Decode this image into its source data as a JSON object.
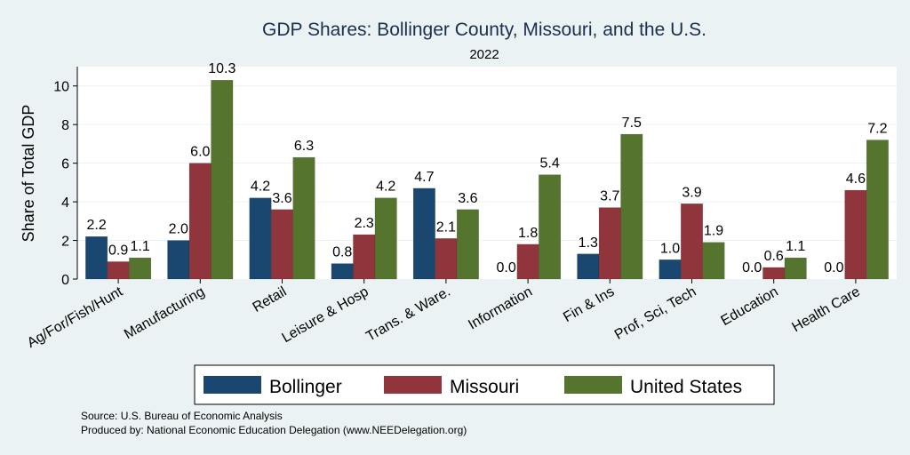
{
  "chart_data": {
    "type": "bar",
    "title": "GDP Shares: Bollinger County, Missouri, and the U.S.",
    "subtitle": "2022",
    "ylabel": "Share of Total GDP",
    "xlabel": "",
    "ylim": [
      0,
      11
    ],
    "yticks": [
      0,
      2,
      4,
      6,
      8,
      10
    ],
    "grid": true,
    "legend_position": "bottom",
    "categories": [
      "Ag/For/Fish/Hunt",
      "Manufacturing",
      "Retail",
      "Leisure & Hosp",
      "Trans. & Ware.",
      "Information",
      "Fin & Ins",
      "Prof, Sci, Tech",
      "Education",
      "Health Care"
    ],
    "series": [
      {
        "name": "Bollinger",
        "color": "#1a476f",
        "values": [
          2.2,
          2.0,
          4.2,
          0.8,
          4.7,
          0.0,
          1.3,
          1.0,
          0.0,
          0.0
        ],
        "labels": [
          "2.2",
          "2.0",
          "4.2",
          "0.8",
          "4.7",
          "0.0",
          "1.3",
          "1.0",
          "0.0",
          "0.0"
        ]
      },
      {
        "name": "Missouri",
        "color": "#90353b",
        "values": [
          0.9,
          6.0,
          3.6,
          2.3,
          2.1,
          1.8,
          3.7,
          3.9,
          0.6,
          4.6
        ],
        "labels": [
          "0.9",
          "6.0",
          "3.6",
          "2.3",
          "2.1",
          "1.8",
          "3.7",
          "3.9",
          "0.6",
          "4.6"
        ]
      },
      {
        "name": "United States",
        "color": "#55752f",
        "values": [
          1.1,
          10.3,
          6.3,
          4.2,
          3.6,
          5.4,
          7.5,
          1.9,
          1.1,
          7.2
        ],
        "labels": [
          "1.1",
          "10.3",
          "6.3",
          "4.2",
          "3.6",
          "5.4",
          "7.5",
          "1.9",
          "1.1",
          "7.2"
        ]
      }
    ]
  },
  "notes": {
    "source": "Source: U.S. Bureau of Economic Analysis",
    "produced_by": "Produced by: National Economic Education Delegation (www.NEEDelegation.org)"
  }
}
